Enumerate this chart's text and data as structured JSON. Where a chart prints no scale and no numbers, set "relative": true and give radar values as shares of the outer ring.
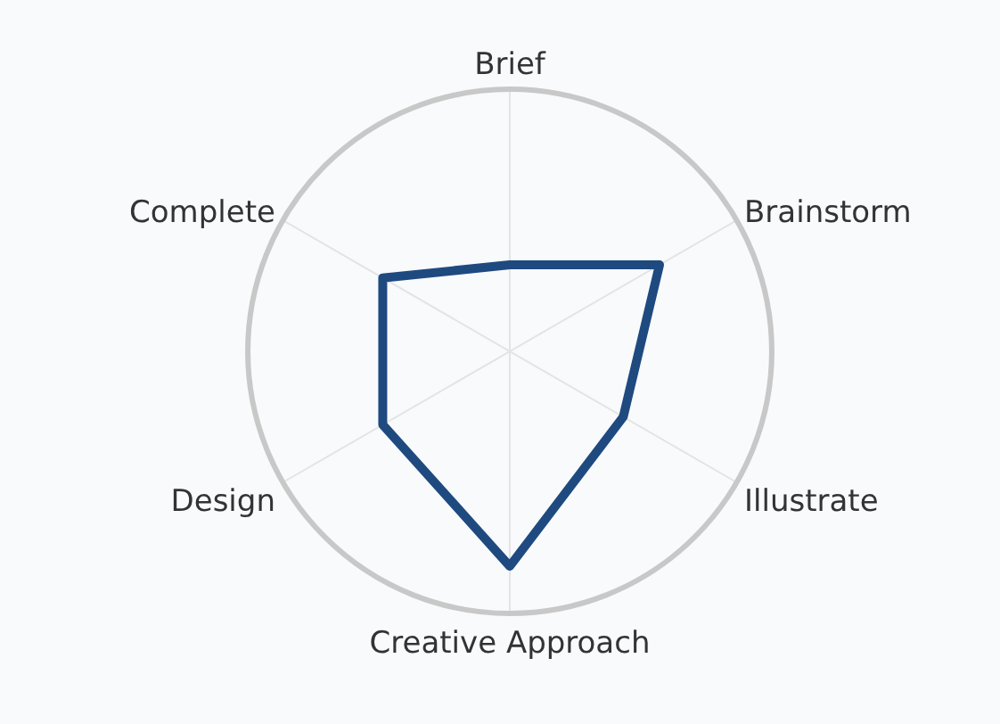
{
  "chart_data": {
    "type": "radar",
    "relative": true,
    "grid": true,
    "categories": [
      "Brief",
      "Brainstorm",
      "Illustrate",
      "Creative Approach",
      "Design",
      "Complete"
    ],
    "series": [
      {
        "color": "#1f4a80",
        "values": [
          0.33,
          0.66,
          0.5,
          0.82,
          0.56,
          0.56
        ]
      }
    ]
  }
}
